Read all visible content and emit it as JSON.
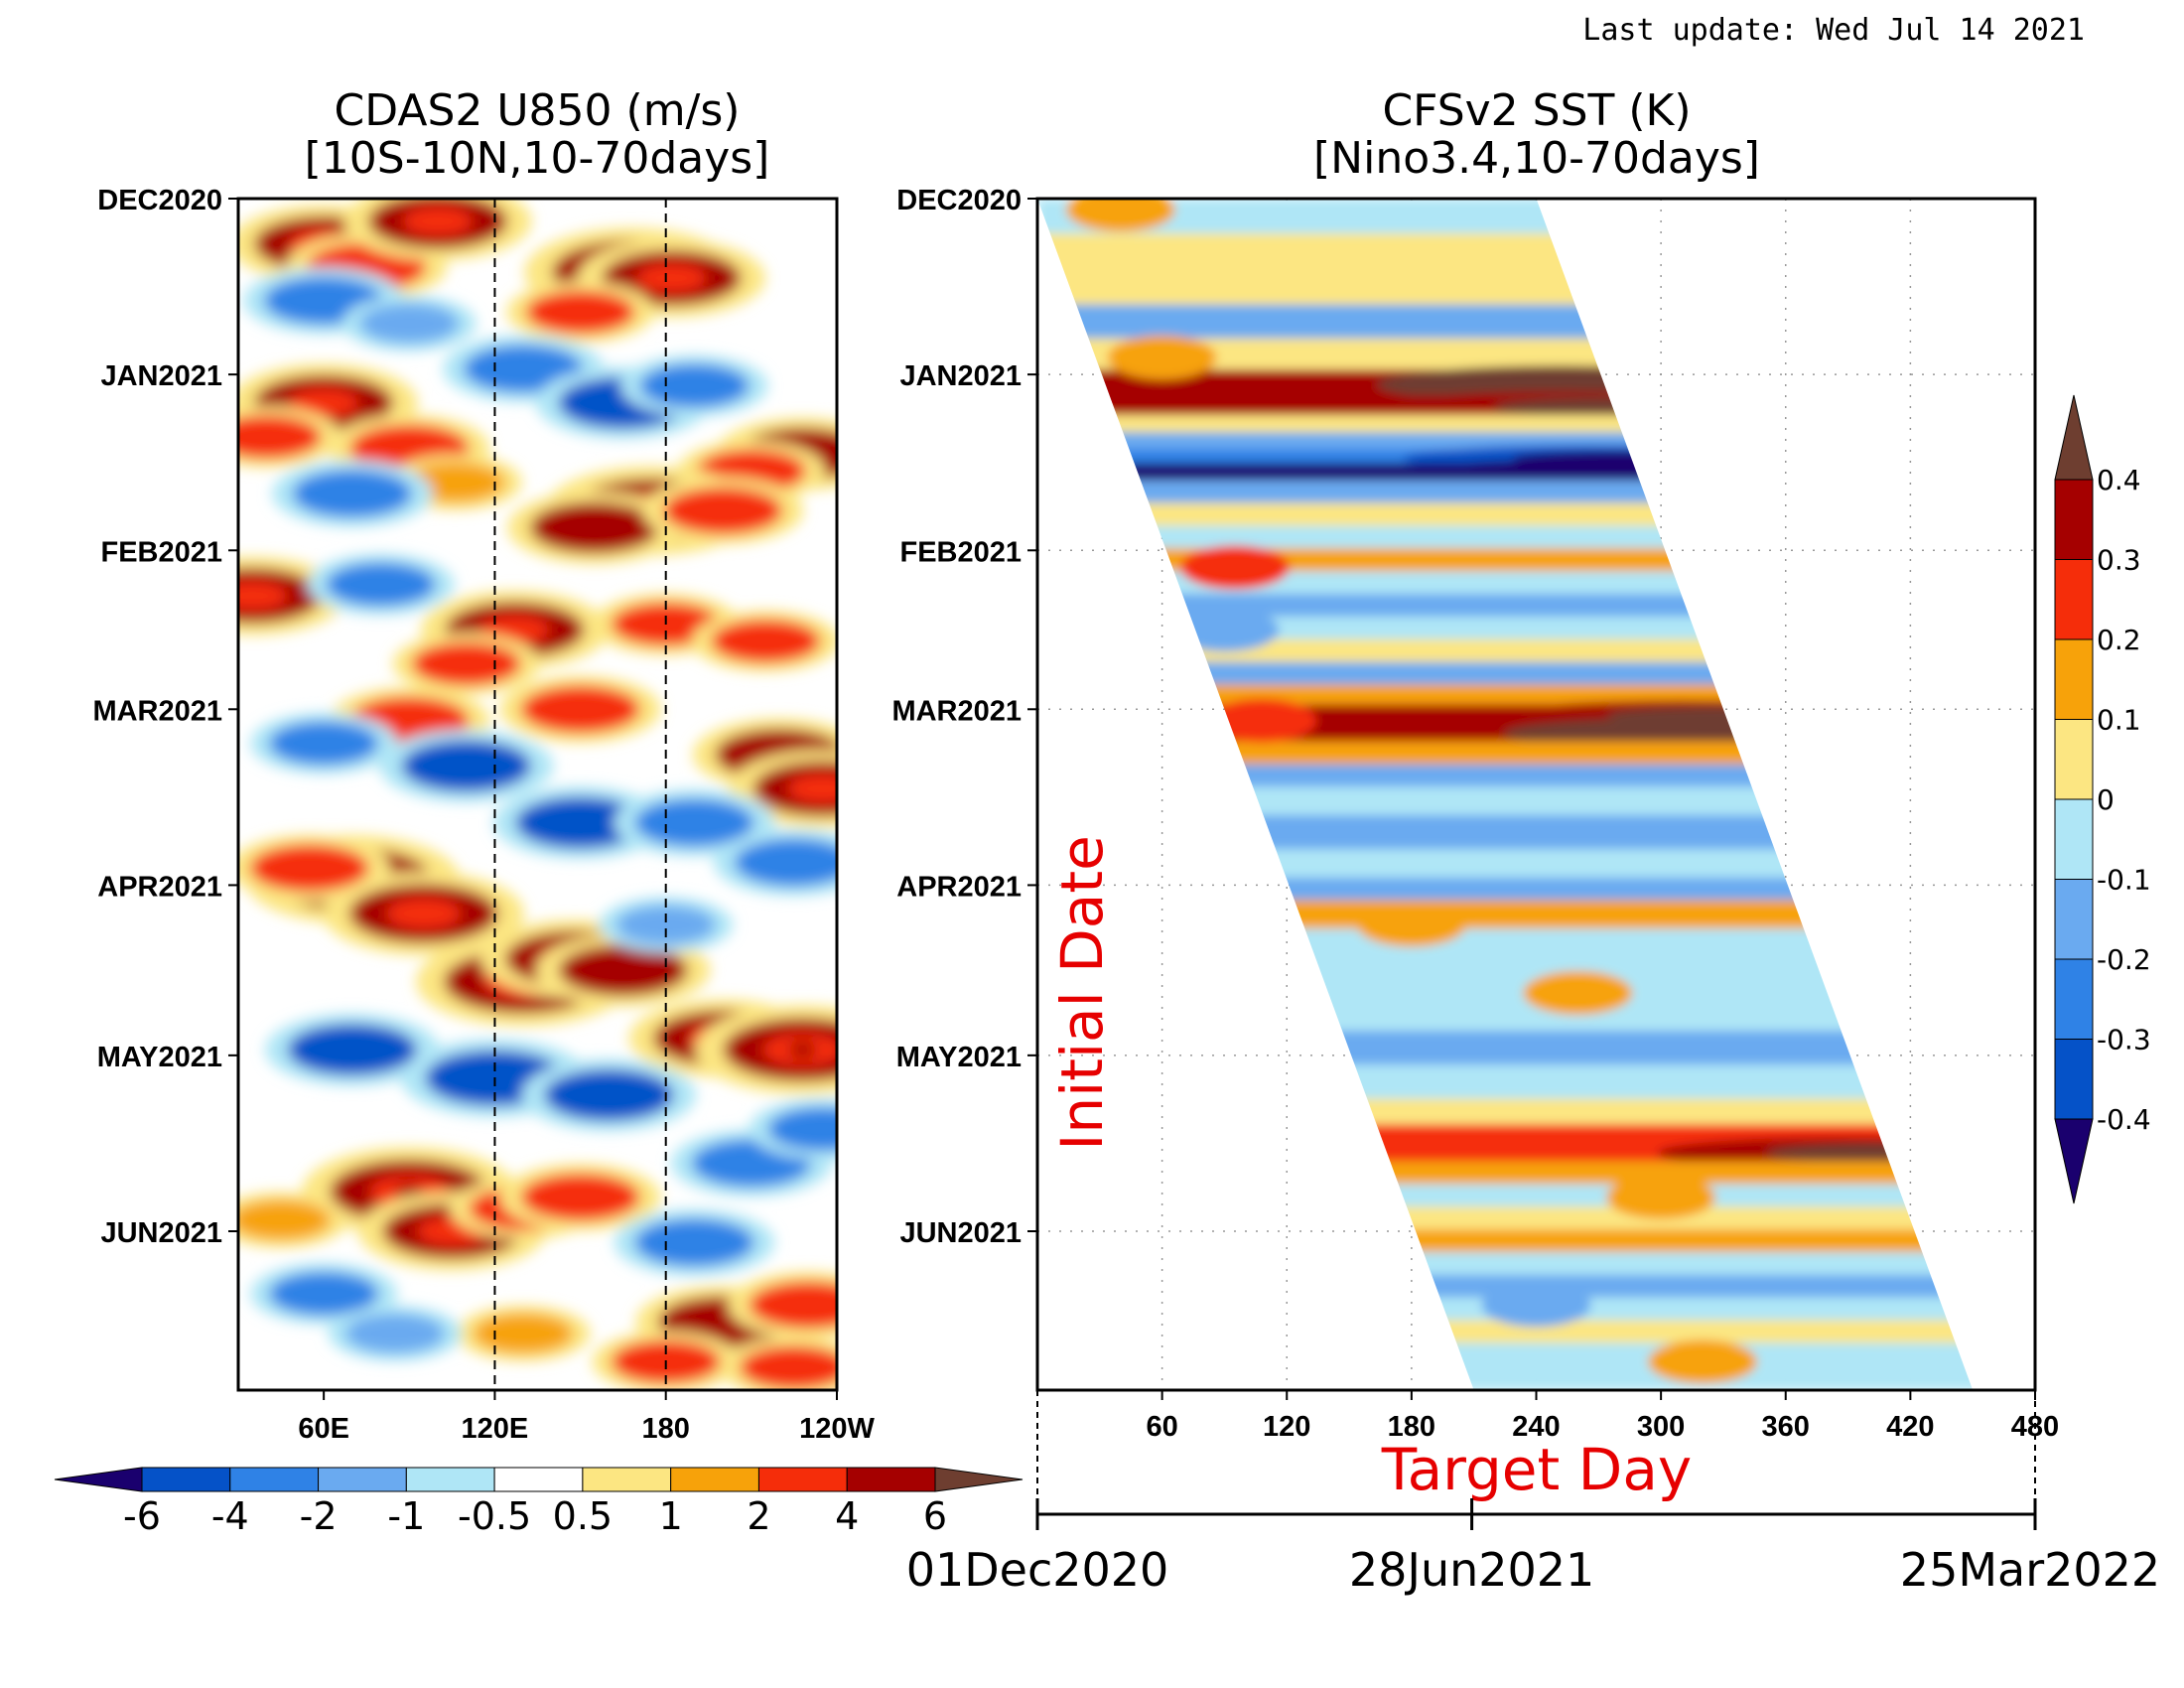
{
  "last_update": "Last update: Wed Jul 14 2021",
  "colors": {
    "neg": [
      "#1a006e",
      "#0552c8",
      "#2f82e6",
      "#6aaaf0",
      "#afe6f6"
    ],
    "neutral": "#ffffff",
    "pos": [
      "#fce682",
      "#f7a20a",
      "#f52d0a",
      "#a50000",
      "#6e3e30"
    ]
  },
  "chart_data": [
    {
      "type": "heatmap",
      "title": "CDAS2  U850 (m/s)",
      "subtitle": "[10S-10N,10-70days]",
      "x_ticks": [
        "60E",
        "120E",
        "180",
        "120W"
      ],
      "x_tick_lon": [
        60,
        120,
        180,
        240
      ],
      "xlim_lon": [
        30,
        240
      ],
      "reference_lines_lon": [
        120,
        180
      ],
      "y_ticks": [
        "DEC2020",
        "JAN2021",
        "FEB2021",
        "MAR2021",
        "APR2021",
        "MAY2021",
        "JUN2021"
      ],
      "y_tick_day": [
        0,
        31,
        62,
        90,
        121,
        151,
        182
      ],
      "ylim_days_from_dec2020": [
        0,
        210
      ],
      "colorbar": {
        "orientation": "horizontal",
        "labels": [
          "-6",
          "-4",
          "-2",
          "-1",
          "-0.5",
          "0.5",
          "1",
          "2",
          "4",
          "6"
        ]
      },
      "features": [
        {
          "lon": 60,
          "day": 8,
          "value": 3
        },
        {
          "lon": 75,
          "day": 12,
          "value": 2
        },
        {
          "lon": 100,
          "day": 4,
          "value": 3
        },
        {
          "lon": 168,
          "day": 13,
          "value": 4
        },
        {
          "lon": 182,
          "day": 14,
          "value": 3
        },
        {
          "lon": 150,
          "day": 20,
          "value": 1.5
        },
        {
          "lon": 60,
          "day": 18,
          "value": -2
        },
        {
          "lon": 90,
          "day": 22,
          "value": -1
        },
        {
          "lon": 130,
          "day": 30,
          "value": -2
        },
        {
          "lon": 165,
          "day": 36,
          "value": -2.5
        },
        {
          "lon": 190,
          "day": 33,
          "value": -1.5
        },
        {
          "lon": 60,
          "day": 36,
          "value": 3
        },
        {
          "lon": 40,
          "day": 42,
          "value": 1.5
        },
        {
          "lon": 228,
          "day": 45,
          "value": 2.5
        },
        {
          "lon": 210,
          "day": 48,
          "value": 1.5
        },
        {
          "lon": 90,
          "day": 44,
          "value": 2
        },
        {
          "lon": 106,
          "day": 50,
          "value": 1
        },
        {
          "lon": 70,
          "day": 52,
          "value": -2
        },
        {
          "lon": 175,
          "day": 55,
          "value": 4
        },
        {
          "lon": 155,
          "day": 58,
          "value": 2.5
        },
        {
          "lon": 200,
          "day": 55,
          "value": 2
        },
        {
          "lon": 35,
          "day": 70,
          "value": 3
        },
        {
          "lon": 80,
          "day": 68,
          "value": -1.5
        },
        {
          "lon": 127,
          "day": 76,
          "value": 3
        },
        {
          "lon": 110,
          "day": 82,
          "value": 1.5
        },
        {
          "lon": 180,
          "day": 75,
          "value": 1.5
        },
        {
          "lon": 215,
          "day": 78,
          "value": 1.5
        },
        {
          "lon": 150,
          "day": 90,
          "value": 2
        },
        {
          "lon": 90,
          "day": 92,
          "value": 2
        },
        {
          "lon": 220,
          "day": 98,
          "value": 2.5
        },
        {
          "lon": 235,
          "day": 104,
          "value": 3
        },
        {
          "lon": 60,
          "day": 96,
          "value": -1.5
        },
        {
          "lon": 110,
          "day": 100,
          "value": -2.5
        },
        {
          "lon": 150,
          "day": 110,
          "value": -2.5
        },
        {
          "lon": 190,
          "day": 110,
          "value": -2
        },
        {
          "lon": 225,
          "day": 117,
          "value": -2
        },
        {
          "lon": 70,
          "day": 120,
          "value": 4
        },
        {
          "lon": 95,
          "day": 126,
          "value": 3.5
        },
        {
          "lon": 55,
          "day": 118,
          "value": 2
        },
        {
          "lon": 130,
          "day": 138,
          "value": 4
        },
        {
          "lon": 148,
          "day": 134,
          "value": 3
        },
        {
          "lon": 165,
          "day": 136,
          "value": 2.5
        },
        {
          "lon": 200,
          "day": 148,
          "value": 3
        },
        {
          "lon": 228,
          "day": 150,
          "value": 4
        },
        {
          "lon": 180,
          "day": 128,
          "value": -1
        },
        {
          "lon": 70,
          "day": 150,
          "value": -2.5
        },
        {
          "lon": 120,
          "day": 155,
          "value": -3
        },
        {
          "lon": 160,
          "day": 158,
          "value": -2.5
        },
        {
          "lon": 210,
          "day": 170,
          "value": -2
        },
        {
          "lon": 235,
          "day": 164,
          "value": -1.5
        },
        {
          "lon": 90,
          "day": 175,
          "value": 4
        },
        {
          "lon": 105,
          "day": 182,
          "value": 3
        },
        {
          "lon": 130,
          "day": 178,
          "value": 1.5
        },
        {
          "lon": 150,
          "day": 176,
          "value": 2
        },
        {
          "lon": 45,
          "day": 180,
          "value": 1
        },
        {
          "lon": 190,
          "day": 184,
          "value": -2
        },
        {
          "lon": 60,
          "day": 193,
          "value": -1.5
        },
        {
          "lon": 200,
          "day": 198,
          "value": 2.5
        },
        {
          "lon": 230,
          "day": 195,
          "value": 2
        },
        {
          "lon": 180,
          "day": 205,
          "value": 1.5
        },
        {
          "lon": 225,
          "day": 206,
          "value": 1.5
        },
        {
          "lon": 130,
          "day": 200,
          "value": 1
        },
        {
          "lon": 85,
          "day": 200,
          "value": -1
        }
      ]
    },
    {
      "type": "heatmap",
      "title": "CFSv2 SST (K)",
      "subtitle": "[Nino3.4,10-70days]",
      "x_ticks": [
        "60",
        "120",
        "180",
        "240",
        "300",
        "360",
        "420",
        "480"
      ],
      "x_tick_values": [
        60,
        120,
        180,
        240,
        300,
        360,
        420,
        480
      ],
      "xlim_target_day": [
        0,
        480
      ],
      "xlabel": "Target Day",
      "ylabel": "Initial Date",
      "y_ticks": [
        "DEC2020",
        "JAN2021",
        "FEB2021",
        "MAR2021",
        "APR2021",
        "MAY2021",
        "JUN2021"
      ],
      "y_tick_day": [
        0,
        31,
        62,
        90,
        121,
        151,
        182
      ],
      "ylim_days_from_dec2020": [
        0,
        210
      ],
      "forecast_window_days": [
        0,
        240
      ],
      "date_axis": [
        "01Dec2020",
        "28Jun2021",
        "25Mar2022"
      ],
      "date_axis_day": [
        0,
        209,
        480
      ],
      "colorbar": {
        "orientation": "vertical",
        "labels": [
          "0.4",
          "0.3",
          "0.2",
          "0.1",
          "0",
          "-0.1",
          "-0.2",
          "-0.3",
          "-0.4"
        ]
      },
      "bands": [
        {
          "day": 3,
          "value": -0.05
        },
        {
          "day": 10,
          "value": 0.05
        },
        {
          "day": 16,
          "value": 0.02
        },
        {
          "day": 22,
          "value": -0.15
        },
        {
          "day": 28,
          "value": 0.05
        },
        {
          "day": 33,
          "value": 0.38
        },
        {
          "day": 37,
          "value": 0.32
        },
        {
          "day": 40,
          "value": 0.05
        },
        {
          "day": 43,
          "value": -0.15
        },
        {
          "day": 46,
          "value": -0.3
        },
        {
          "day": 48,
          "value": -0.42
        },
        {
          "day": 52,
          "value": -0.12
        },
        {
          "day": 56,
          "value": 0.05
        },
        {
          "day": 60,
          "value": -0.08
        },
        {
          "day": 64,
          "value": 0.15
        },
        {
          "day": 68,
          "value": -0.05
        },
        {
          "day": 72,
          "value": -0.15
        },
        {
          "day": 76,
          "value": -0.05
        },
        {
          "day": 80,
          "value": 0.05
        },
        {
          "day": 84,
          "value": -0.12
        },
        {
          "day": 88,
          "value": 0.1
        },
        {
          "day": 91,
          "value": 0.3
        },
        {
          "day": 94,
          "value": 0.38
        },
        {
          "day": 98,
          "value": 0.12
        },
        {
          "day": 102,
          "value": -0.15
        },
        {
          "day": 106,
          "value": -0.05
        },
        {
          "day": 112,
          "value": -0.15
        },
        {
          "day": 118,
          "value": -0.05
        },
        {
          "day": 122,
          "value": -0.12
        },
        {
          "day": 126,
          "value": 0.1
        },
        {
          "day": 132,
          "value": -0.05
        },
        {
          "day": 138,
          "value": -0.1
        },
        {
          "day": 144,
          "value": -0.05
        },
        {
          "day": 150,
          "value": -0.15
        },
        {
          "day": 156,
          "value": -0.05
        },
        {
          "day": 162,
          "value": 0.05
        },
        {
          "day": 165,
          "value": 0.2
        },
        {
          "day": 168,
          "value": 0.28
        },
        {
          "day": 172,
          "value": 0.15
        },
        {
          "day": 176,
          "value": -0.05
        },
        {
          "day": 180,
          "value": 0.05
        },
        {
          "day": 184,
          "value": 0.12
        },
        {
          "day": 188,
          "value": -0.05
        },
        {
          "day": 192,
          "value": -0.15
        },
        {
          "day": 196,
          "value": -0.05
        },
        {
          "day": 200,
          "value": 0.05
        },
        {
          "day": 204,
          "value": -0.1
        },
        {
          "day": 209,
          "value": -0.05
        }
      ],
      "blobs": [
        {
          "target_day": 40,
          "day": 2,
          "value": 0.18
        },
        {
          "target_day": 60,
          "day": 28,
          "value": 0.15
        },
        {
          "target_day": 95,
          "day": 65,
          "value": 0.25
        },
        {
          "target_day": 90,
          "day": 76,
          "value": -0.2
        },
        {
          "target_day": 108,
          "day": 92,
          "value": 0.25
        },
        {
          "target_day": 180,
          "day": 128,
          "value": 0.18
        },
        {
          "target_day": 260,
          "day": 140,
          "value": 0.12
        },
        {
          "target_day": 300,
          "day": 176,
          "value": 0.12
        },
        {
          "target_day": 240,
          "day": 195,
          "value": -0.12
        },
        {
          "target_day": 320,
          "day": 205,
          "value": 0.12
        }
      ]
    }
  ]
}
